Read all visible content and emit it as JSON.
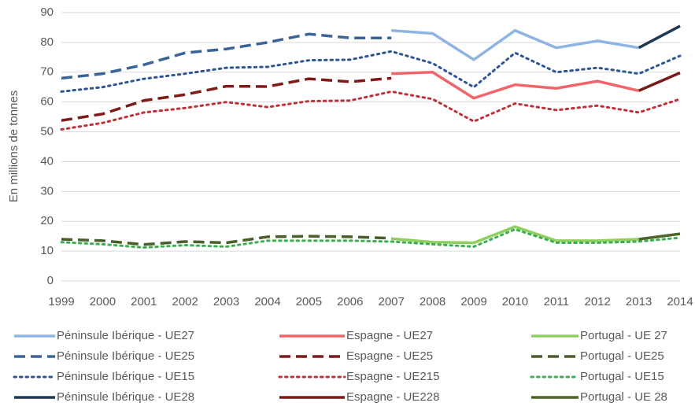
{
  "chart_data": {
    "type": "line",
    "y_label": "En millions de tonnes",
    "categories": [
      "1999",
      "2000",
      "2001",
      "2002",
      "2003",
      "2004",
      "2005",
      "2006",
      "2007",
      "2008",
      "2009",
      "2010",
      "2011",
      "2012",
      "2013",
      "2014"
    ],
    "ylim": [
      0,
      90
    ],
    "yticks": [
      0,
      10,
      20,
      30,
      40,
      50,
      60,
      70,
      80,
      90
    ],
    "grid": true,
    "series": [
      {
        "name": "Péninsule Ibérique - UE27",
        "color": "#8eb4e3",
        "dash": "solid",
        "values": [
          null,
          null,
          null,
          null,
          null,
          null,
          null,
          null,
          84,
          83,
          74.2,
          84,
          78.2,
          80.5,
          78.2,
          null
        ]
      },
      {
        "name": "Péninsule Ibérique - UE25",
        "color": "#3a6496",
        "dash": "dashed",
        "values": [
          68,
          69.5,
          72.5,
          76.5,
          77.8,
          80,
          82.8,
          81.5,
          81.5,
          null,
          null,
          null,
          null,
          null,
          null,
          null
        ]
      },
      {
        "name": "Péninsule Ibérique - UE15",
        "color": "#2f5597",
        "dash": "dotted",
        "values": [
          63.5,
          65,
          67.8,
          69.5,
          71.5,
          71.8,
          74,
          74.2,
          77,
          73,
          65,
          76.5,
          70,
          71.5,
          69.5,
          75.5
        ]
      },
      {
        "name": "Péninsule Ibérique - UE28",
        "color": "#1f3855",
        "dash": "solid",
        "values": [
          null,
          null,
          null,
          null,
          null,
          null,
          null,
          null,
          null,
          null,
          null,
          null,
          null,
          null,
          78.2,
          85.5
        ]
      },
      {
        "name": "Espagne - UE27",
        "color": "#f0646a",
        "dash": "solid",
        "values": [
          null,
          null,
          null,
          null,
          null,
          null,
          null,
          null,
          69.5,
          70,
          61.3,
          65.8,
          64.6,
          67,
          63.8,
          null
        ]
      },
      {
        "name": "Espagne - UE25",
        "color": "#7f1a1a",
        "dash": "dashed",
        "values": [
          53.8,
          56,
          60.5,
          62.5,
          65.3,
          65.2,
          67.8,
          66.8,
          68,
          null,
          null,
          null,
          null,
          null,
          null,
          null
        ]
      },
      {
        "name": "Espagne - UE215",
        "color": "#c0303a",
        "dash": "dotted",
        "values": [
          50.8,
          53,
          56.5,
          58,
          60,
          58.3,
          60.3,
          60.5,
          63.5,
          61,
          53.5,
          59.5,
          57.3,
          58.8,
          56.5,
          61
        ]
      },
      {
        "name": "Espagne - UE228",
        "color": "#7a1b1b",
        "dash": "solid",
        "values": [
          null,
          null,
          null,
          null,
          null,
          null,
          null,
          null,
          null,
          null,
          null,
          null,
          null,
          null,
          63.8,
          69.8
        ]
      },
      {
        "name": "Portugal - UE 27",
        "color": "#8ecf5e",
        "dash": "solid",
        "values": [
          null,
          null,
          null,
          null,
          null,
          null,
          null,
          null,
          14.2,
          13,
          12.8,
          18.2,
          13.5,
          13.5,
          14,
          null
        ]
      },
      {
        "name": "Portugal - UE25",
        "color": "#4a5e2b",
        "dash": "dashed",
        "values": [
          14,
          13.5,
          12.2,
          13.2,
          12.8,
          14.8,
          15,
          14.8,
          14.3,
          null,
          null,
          null,
          null,
          null,
          null,
          null
        ]
      },
      {
        "name": "Portugal - UE15",
        "color": "#3cb050",
        "dash": "dotted",
        "values": [
          13,
          12.3,
          11.2,
          12,
          11.5,
          13.5,
          13.5,
          13.5,
          13.2,
          12.3,
          11.5,
          17.3,
          12.8,
          12.8,
          13.2,
          14.5
        ]
      },
      {
        "name": "Portugal - UE 28",
        "color": "#4f6228",
        "dash": "solid",
        "values": [
          null,
          null,
          null,
          null,
          null,
          null,
          null,
          null,
          null,
          null,
          null,
          null,
          null,
          null,
          14,
          15.8
        ]
      }
    ]
  }
}
